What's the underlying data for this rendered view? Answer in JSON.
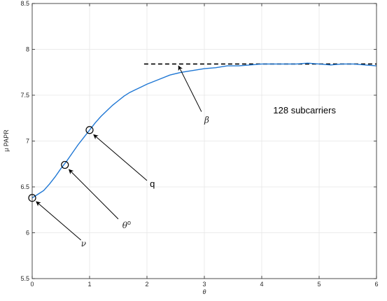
{
  "chart_data": {
    "type": "line",
    "title": "",
    "xlabel": "θ",
    "ylabel": "μ PAPR",
    "xlim": [
      0,
      6
    ],
    "ylim": [
      5.5,
      8.5
    ],
    "xticks": [
      "0",
      "1",
      "2",
      "3",
      "4",
      "5",
      "6"
    ],
    "yticks": [
      "5.5",
      "6",
      "6.5",
      "7",
      "7.5",
      "8",
      "8.5"
    ],
    "grid": true,
    "colors": {
      "curve": "#1f77d4",
      "asymptote": "#000000",
      "grid": "#e6e6e6",
      "axes": "#262626"
    },
    "series": [
      {
        "x": [
          0,
          0.1,
          0.2,
          0.3,
          0.4,
          0.5,
          0.6,
          0.7,
          0.8,
          0.9,
          1.0,
          1.1,
          1.2,
          1.3,
          1.4,
          1.5,
          1.6,
          1.7,
          1.8,
          1.9,
          2.0,
          2.2,
          2.4,
          2.6,
          2.8,
          3.0,
          3.2,
          3.4,
          3.6,
          3.8,
          4.0,
          4.2,
          4.4,
          4.6,
          4.8,
          5.0,
          5.2,
          5.4,
          5.6,
          5.8,
          6.0
        ],
        "y": [
          6.38,
          6.42,
          6.46,
          6.53,
          6.61,
          6.7,
          6.78,
          6.87,
          6.96,
          7.04,
          7.12,
          7.2,
          7.27,
          7.33,
          7.39,
          7.44,
          7.49,
          7.53,
          7.56,
          7.59,
          7.62,
          7.67,
          7.72,
          7.75,
          7.77,
          7.79,
          7.8,
          7.82,
          7.82,
          7.83,
          7.84,
          7.84,
          7.84,
          7.84,
          7.85,
          7.84,
          7.83,
          7.84,
          7.84,
          7.83,
          7.82
        ]
      }
    ],
    "asymptote": {
      "y": 7.84,
      "x_from": 1.95,
      "x_to": 6.0,
      "style": "dashed"
    },
    "markers": [
      {
        "x": 0.0,
        "y": 6.38
      },
      {
        "x": 0.57,
        "y": 6.74
      },
      {
        "x": 1.0,
        "y": 7.12
      }
    ],
    "annotations": [
      {
        "text": "ν",
        "style": "italic",
        "text_x": 0.85,
        "text_y": 5.85,
        "arrow_from": [
          0.85,
          5.92
        ],
        "arrow_to": [
          0.07,
          6.34
        ]
      },
      {
        "text": "θ",
        "sup": "o",
        "style": "italic",
        "text_x": 1.57,
        "text_y": 6.05,
        "arrow_from": [
          1.5,
          6.15
        ],
        "arrow_to": [
          0.64,
          6.69
        ]
      },
      {
        "text": "q",
        "style": "normal",
        "text_x": 2.05,
        "text_y": 6.5,
        "arrow_from": [
          2.0,
          6.57
        ],
        "arrow_to": [
          1.07,
          7.07
        ]
      },
      {
        "text": "β",
        "style": "italic",
        "text_x": 3.0,
        "text_y": 7.2,
        "arrow_from": [
          2.95,
          7.32
        ],
        "arrow_to": [
          2.55,
          7.82
        ]
      },
      {
        "text": "128 subcarriers",
        "style": "normal",
        "text_x": 4.2,
        "text_y": 7.3
      }
    ]
  }
}
